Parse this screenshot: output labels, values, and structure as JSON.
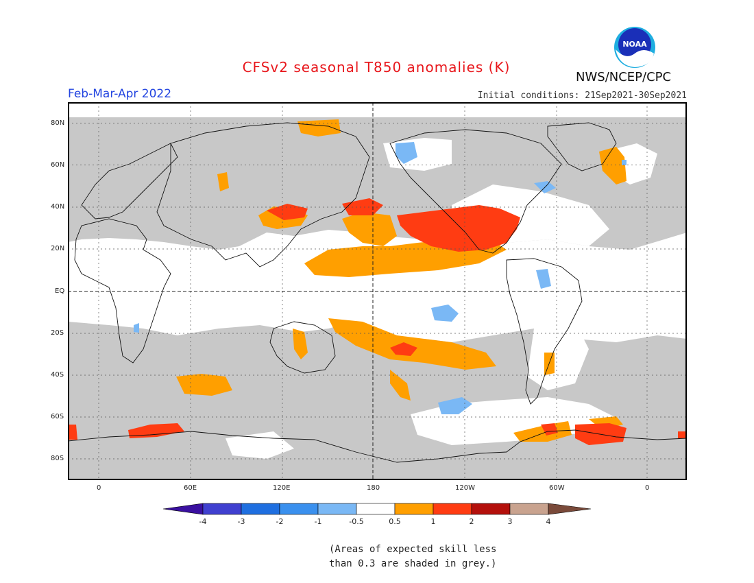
{
  "title": "CFSv2 seasonal T850 anomalies (K)",
  "period": "Feb-Mar-Apr 2022",
  "initial_conditions": "Initial conditions: 21Sep2021-30Sep2021",
  "agency": "NWS/NCEP/CPC",
  "logo_text": "NOAA",
  "lat_labels": [
    "80N",
    "60N",
    "40N",
    "20N",
    "EQ",
    "20S",
    "40S",
    "60S",
    "80S"
  ],
  "lon_labels": [
    "0",
    "60E",
    "120E",
    "180",
    "120W",
    "60W",
    "0"
  ],
  "colorbar": {
    "labels": [
      "-4",
      "-3",
      "-2",
      "-1",
      "-0.5",
      "0.5",
      "1",
      "2",
      "3",
      "4"
    ],
    "colors": [
      "#3a10a0",
      "#4040d0",
      "#1f6fe0",
      "#3a90ee",
      "#7ab8f5",
      "#ffffff",
      "#ff9f00",
      "#ff3c12",
      "#b4100c",
      "#c9a38f",
      "#7a4a3a"
    ]
  },
  "note_lines": [
    "(Areas of expected skill less",
    "than 0.3 are shaded in grey.)"
  ],
  "palette": {
    "grey": "#c8c8c8",
    "orange": "#ff9f00",
    "red": "#ff3c12",
    "lightblue": "#7ab8f5"
  }
}
